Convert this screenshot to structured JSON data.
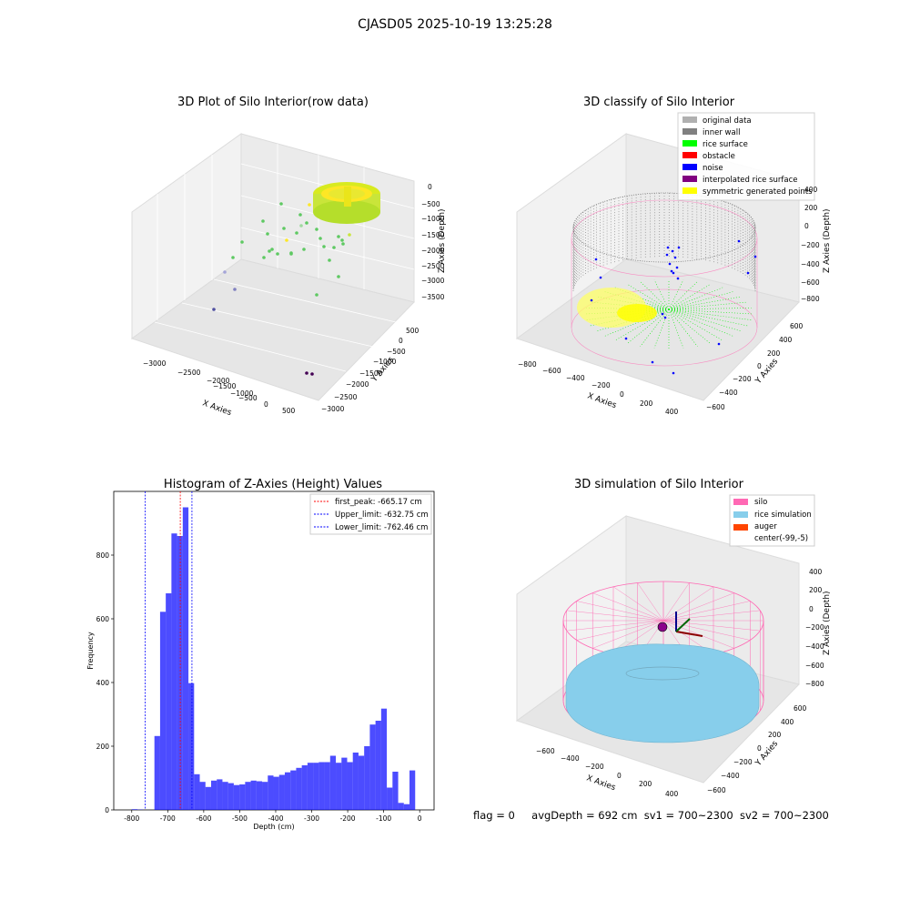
{
  "figure": {
    "title": "CJASD05 2025-10-19 13:25:28"
  },
  "panels": {
    "raw": {
      "title": "3D Plot of Silo Interior(row data)",
      "xlabel": "X Axies",
      "ylabel": "Y Axies",
      "zlabel": "Z Axies (Depth)",
      "xticks": [
        "−3000",
        "−2500",
        "−2000",
        "−1500",
        "−1000",
        "−500",
        "0",
        "500"
      ],
      "yticks": [
        "500",
        "0",
        "−500",
        "−1000",
        "−1500",
        "−2000",
        "−2500",
        "−3000"
      ],
      "zticks": [
        "0",
        "−500",
        "−1000",
        "−1500",
        "−2000",
        "−2500",
        "−3000",
        "−3500"
      ],
      "colors": {
        "near": "#fde725",
        "mid": "#5ec962",
        "far": "#3b528b",
        "deep": "#440154"
      }
    },
    "classify": {
      "title": "3D classify of Silo Interior",
      "xlabel": "X Axies",
      "ylabel": "Y Axies",
      "zlabel": "Z Axies (Depth)",
      "xticks": [
        "−800",
        "−600",
        "−400",
        "−200",
        "0",
        "200",
        "400"
      ],
      "yticks": [
        "600",
        "400",
        "200",
        "0",
        "−200",
        "−400",
        "−600"
      ],
      "zticks": [
        "400",
        "200",
        "0",
        "−200",
        "−400",
        "−600",
        "−800"
      ],
      "legend": [
        {
          "label": "original data",
          "color": "#b0b0b0"
        },
        {
          "label": "inner wall",
          "color": "#808080"
        },
        {
          "label": "rice surface",
          "color": "#00ff00"
        },
        {
          "label": "obstacle",
          "color": "#ff0000"
        },
        {
          "label": "noise",
          "color": "#0000ff"
        },
        {
          "label": "interpolated rice surface",
          "color": "#800080"
        },
        {
          "label": "symmetric generated points",
          "color": "#ffff00"
        }
      ]
    },
    "simulation": {
      "title": "3D simulation of Silo Interior",
      "xlabel": "X Axies",
      "ylabel": "Y Axies",
      "zlabel": "Z Axies (Depth)",
      "xticks": [
        "−600",
        "−400",
        "−200",
        "0",
        "200",
        "400"
      ],
      "yticks": [
        "600",
        "400",
        "200",
        "0",
        "−200",
        "−400",
        "−600"
      ],
      "zticks": [
        "400",
        "200",
        "0",
        "−200",
        "−400",
        "−600",
        "−800"
      ],
      "legend": [
        {
          "label": "silo",
          "color": "#ff69b4"
        },
        {
          "label": "rice simulation",
          "color": "#87ceeb"
        },
        {
          "label": "auger",
          "color": "#ff4500"
        },
        {
          "label": "center(-99,-5)",
          "color": ""
        }
      ]
    }
  },
  "chart_data": {
    "type": "bar",
    "title": "Histogram of Z-Axies (Height) Values",
    "xlabel": "Depth (cm)",
    "ylabel": "Frequency",
    "xlim": [
      -850,
      40
    ],
    "ylim": [
      0,
      1000
    ],
    "xticks": [
      -800,
      -700,
      -600,
      -500,
      -400,
      -300,
      -200,
      -100,
      0
    ],
    "yticks": [
      0,
      200,
      400,
      600,
      800
    ],
    "bar_color": "#0000ff",
    "bin_start": -800,
    "bin_width": 15.75,
    "values": [
      2,
      1,
      0,
      0,
      232,
      622,
      680,
      868,
      860,
      950,
      398,
      112,
      88,
      72,
      92,
      96,
      88,
      84,
      78,
      80,
      88,
      92,
      90,
      88,
      108,
      104,
      110,
      118,
      124,
      132,
      140,
      148,
      148,
      150,
      150,
      170,
      148,
      164,
      150,
      180,
      170,
      200,
      268,
      280,
      318,
      70,
      120,
      22,
      18,
      124
    ],
    "vlines": [
      {
        "x": -665.17,
        "label": "first_peak: -665.17 cm",
        "color": "#ff0000"
      },
      {
        "x": -632.75,
        "label": "Upper_limit: -632.75 cm",
        "color": "#0000ff"
      },
      {
        "x": -762.46,
        "label": "Lower_limit: -762.46 cm",
        "color": "#0000ff"
      }
    ]
  },
  "footer": {
    "flag": "flag = 0",
    "avg": "avgDepth = 692 cm",
    "sv1": "sv1 = 700~2300",
    "sv2": "sv2 = 700~2300"
  }
}
